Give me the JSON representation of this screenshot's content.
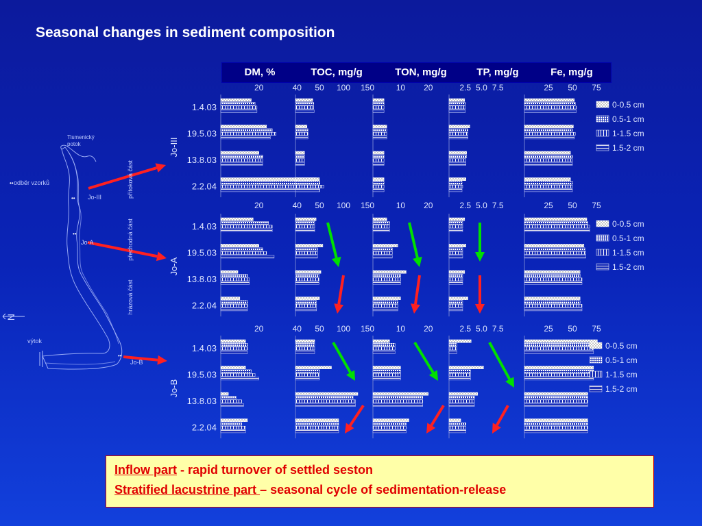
{
  "title": "Seasonal changes in sediment composition",
  "header": [
    "DM, %",
    "TOC, mg/g",
    "TON, mg/g",
    "TP, mg/g",
    "Fe, mg/g"
  ],
  "note": {
    "line1_u": "Inflow part",
    "line1_rest": " - rapid turnover of settled seston",
    "line2_u": "Stratified lacustrine part ",
    "line2_rest": "– seasonal cycle of sedimentation-release"
  },
  "map": {
    "labels": [
      "Tismenický",
      "potok",
      "odběr vzorků",
      "přítoková část",
      "přechodná část",
      "hrázová část",
      "výtok",
      "Jo-III",
      "Jo-A",
      "Jo-B",
      "N"
    ]
  },
  "colors": {
    "arrow_up": "#00e000",
    "arrow_down": "#ff2020",
    "link": "#ff2020"
  },
  "chart_data": {
    "type": "bar",
    "orientation": "horizontal",
    "dates": [
      "1.4.03",
      "19.5.03",
      "13.8.03",
      "2.2.04"
    ],
    "depth_series": [
      "0-0.5 cm",
      "0.5-1 cm",
      "1-1.5 cm",
      "1.5-2 cm"
    ],
    "variables": [
      "DM, %",
      "TOC, mg/g",
      "TON, mg/g",
      "TP, mg/g",
      "Fe, mg/g"
    ],
    "tick_labels": [
      [
        "20",
        "40"
      ],
      [
        "50",
        "100",
        "150"
      ],
      [
        "10",
        "20"
      ],
      [
        "2.5",
        "5.0",
        "7.5"
      ],
      [
        "25",
        "50",
        "75"
      ]
    ],
    "tick_values": [
      [
        20,
        40
      ],
      [
        50,
        100,
        150
      ],
      [
        10,
        20
      ],
      [
        2.5,
        5.0,
        7.5
      ],
      [
        25,
        50,
        75
      ]
    ],
    "xlim": [
      [
        0,
        46
      ],
      [
        0,
        160
      ],
      [
        0,
        26
      ],
      [
        0,
        8
      ],
      [
        0,
        80
      ]
    ],
    "sites": [
      {
        "name": "Jo-III",
        "values": [
          [
            [
              16,
              18,
              19,
              19
            ],
            [
              24,
              27,
              29,
              26
            ],
            [
              20,
              22,
              22,
              22
            ],
            [
              50,
              52,
              54,
              52
            ]
          ],
          [
            [
              36,
              38,
              38,
              39
            ],
            [
              24,
              26,
              26,
              26
            ],
            [
              19,
              19,
              19,
              19
            ],
            [
              50,
              50,
              52,
              50
            ]
          ],
          [
            [
              4,
              4,
              4,
              4
            ],
            [
              5,
              5,
              5,
              5
            ],
            [
              4,
              4,
              4,
              4
            ],
            [
              4,
              4,
              4,
              4
            ]
          ],
          [
            [
              2.4,
              2.5,
              2.5,
              2.5
            ],
            [
              3.2,
              2.9,
              2.9,
              2.9
            ],
            [
              2.7,
              2.7,
              2.6,
              2.6
            ],
            [
              2.6,
              2.0,
              2.1,
              2.0
            ]
          ],
          [
            [
              52,
              53,
              54,
              54
            ],
            [
              51,
              50,
              53,
              52
            ],
            [
              48,
              50,
              50,
              50
            ],
            [
              48,
              50,
              50,
              50
            ]
          ]
        ]
      },
      {
        "name": "Jo-A",
        "values": [
          [
            [
              17,
              25,
              27,
              27
            ],
            [
              20,
              22,
              24,
              28
            ],
            [
              9,
              14,
              15,
              15
            ],
            [
              10,
              14,
              14,
              14
            ]
          ],
          [
            [
              43,
              40,
              40,
              40
            ],
            [
              57,
              46,
              46,
              46
            ],
            [
              53,
              49,
              49,
              49
            ],
            [
              50,
              44,
              44,
              44
            ]
          ],
          [
            [
              5,
              6,
              6,
              6
            ],
            [
              9,
              7,
              7,
              7
            ],
            [
              12,
              10,
              10,
              10
            ],
            [
              10,
              9,
              9,
              9
            ]
          ],
          [
            [
              2.4,
              2.1,
              2.1,
              2.1
            ],
            [
              2.6,
              2.1,
              2.1,
              2.1
            ],
            [
              2.4,
              2.1,
              2.1,
              2.1
            ],
            [
              2.9,
              2.1,
              2.1,
              2.1
            ]
          ],
          [
            [
              65,
              66,
              68,
              68
            ],
            [
              62,
              63,
              64,
              64
            ],
            [
              58,
              58,
              60,
              60
            ],
            [
              58,
              58,
              60,
              60
            ]
          ]
        ]
      },
      {
        "name": "Jo-B",
        "values": [
          [
            [
              13,
              14,
              14,
              14
            ],
            [
              13,
              16,
              18,
              20
            ],
            [
              4,
              8,
              11,
              12
            ],
            [
              14,
              11,
              13,
              13
            ]
          ],
          [
            [
              40,
              40,
              40,
              40
            ],
            [
              75,
              50,
              50,
              50
            ],
            [
              130,
              120,
              125,
              125
            ],
            [
              90,
              90,
              90,
              90
            ]
          ],
          [
            [
              6,
              8,
              8,
              8
            ],
            [
              10,
              10,
              10,
              10
            ],
            [
              20,
              18,
              18,
              18
            ],
            [
              13,
              12,
              12,
              12
            ]
          ],
          [
            [
              3.4,
              1.2,
              1.2,
              1.2
            ],
            [
              5.3,
              3.3,
              3.3,
              3.3
            ],
            [
              4.4,
              3.9,
              3.9,
              3.9
            ],
            [
              1.8,
              2.6,
              2.6,
              2.6
            ]
          ],
          [
            [
              76,
              72,
              72,
              72
            ],
            [
              72,
              72,
              72,
              72
            ],
            [
              66,
              66,
              66,
              66
            ],
            [
              66,
              66,
              66,
              66
            ]
          ]
        ]
      }
    ],
    "trend_arrows": [
      {
        "site": "Jo-A",
        "variables": [
          "TOC",
          "TON",
          "TP"
        ],
        "first": "green",
        "second": "red"
      },
      {
        "site": "Jo-B",
        "variables": [
          "TOC",
          "TON",
          "TP"
        ],
        "first": "green",
        "second": "red"
      }
    ]
  }
}
